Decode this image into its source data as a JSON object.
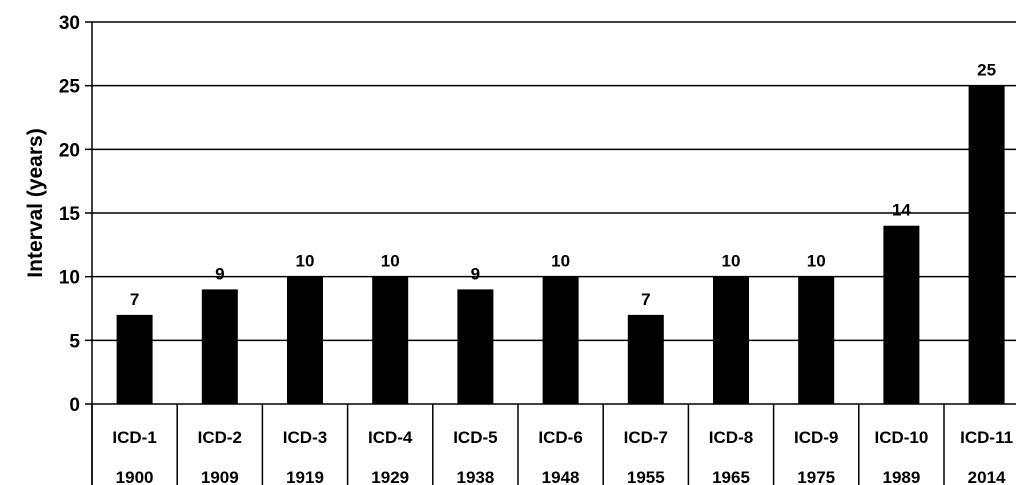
{
  "chart_data": {
    "type": "bar",
    "title": "",
    "xlabel": "",
    "ylabel": "Interval (years)",
    "ylim": [
      0,
      30
    ],
    "yticks": [
      0,
      5,
      10,
      15,
      20,
      25,
      30
    ],
    "grid": true,
    "categories": [
      "ICD-1",
      "ICD-2",
      "ICD-3",
      "ICD-4",
      "ICD-5",
      "ICD-6",
      "ICD-7",
      "ICD-8",
      "ICD-9",
      "ICD-10",
      "ICD-11"
    ],
    "years": [
      "1900",
      "1909",
      "1919",
      "1929",
      "1938",
      "1948",
      "1955",
      "1965",
      "1975",
      "1989",
      "2014"
    ],
    "values": [
      7,
      9,
      10,
      10,
      9,
      10,
      7,
      10,
      10,
      14,
      25
    ],
    "data_labels": [
      "7",
      "9",
      "10",
      "10",
      "9",
      "10",
      "7",
      "10",
      "10",
      "14",
      "25"
    ],
    "colors": {
      "bar": "#000000",
      "grid": "#000000",
      "background": "#ffffff"
    }
  }
}
